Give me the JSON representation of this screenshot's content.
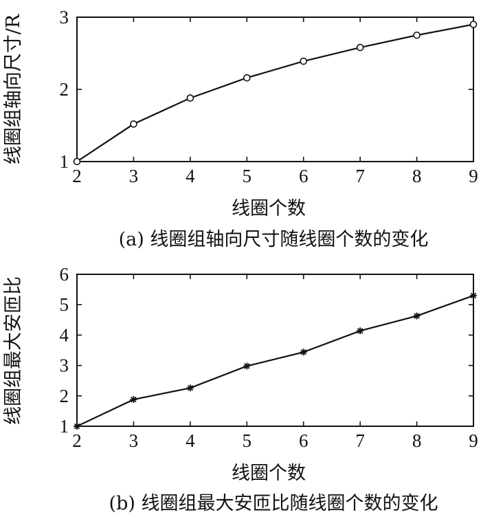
{
  "chart_data": [
    {
      "type": "line",
      "caption": "(a) 线圈组轴向尺寸随线圈个数的变化",
      "xlabel": "线圈个数",
      "ylabel": "线圈组轴向尺寸/R",
      "xlim": [
        2,
        9
      ],
      "ylim": [
        1,
        3
      ],
      "xticks": [
        2,
        3,
        4,
        5,
        6,
        7,
        8,
        9
      ],
      "yticks": [
        1,
        2,
        3
      ],
      "grid": false,
      "marker": "circle",
      "series": [
        {
          "x": [
            2,
            3,
            4,
            5,
            6,
            7,
            8,
            9
          ],
          "y": [
            1.0,
            1.52,
            1.88,
            2.16,
            2.39,
            2.58,
            2.75,
            2.9
          ]
        }
      ]
    },
    {
      "type": "line",
      "caption": "(b) 线圈组最大安匝比随线圈个数的变化",
      "xlabel": "线圈个数",
      "ylabel": "线圈组最大安匝比",
      "xlim": [
        2,
        9
      ],
      "ylim": [
        1,
        6
      ],
      "xticks": [
        2,
        3,
        4,
        5,
        6,
        7,
        8,
        9
      ],
      "yticks": [
        1,
        2,
        3,
        4,
        5,
        6
      ],
      "grid": false,
      "marker": "asterisk",
      "series": [
        {
          "x": [
            2,
            3,
            4,
            5,
            6,
            7,
            8,
            9
          ],
          "y": [
            1.0,
            1.88,
            2.26,
            2.98,
            3.44,
            4.14,
            4.63,
            5.3
          ]
        }
      ]
    }
  ]
}
